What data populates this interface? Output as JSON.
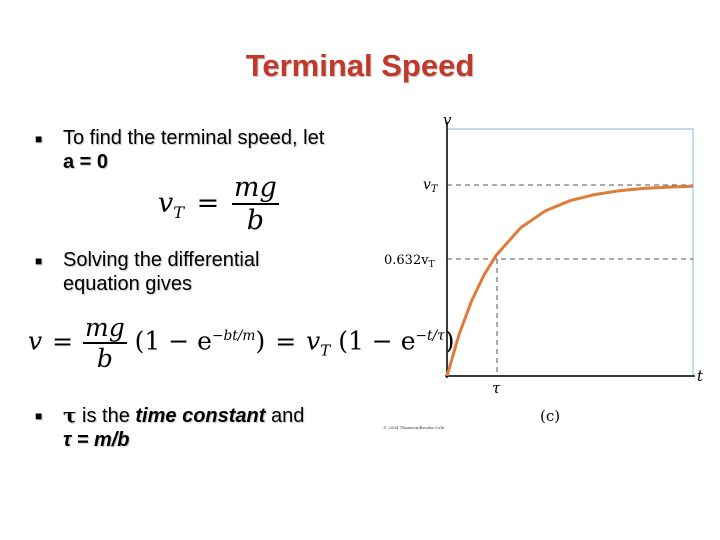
{
  "slide": {
    "title": "Terminal Speed",
    "bullets": [
      {
        "line1": "To find the terminal speed, let",
        "line2": "a = 0"
      },
      {
        "line1": "Solving the differential",
        "line2": "equation gives"
      },
      {
        "tau": "τ",
        "mid": " is the ",
        "emph": "time constant",
        "tail": " and",
        "line2": "τ = m/b"
      }
    ],
    "equations": {
      "eq1": {
        "lhs_v": "v",
        "lhs_sub": "T",
        "equals": "=",
        "num": "mg",
        "den": "b"
      },
      "eq2": {
        "v": "v",
        "equals1": "=",
        "num": "mg",
        "den": "b",
        "one1": "(1 − e",
        "exp1": "−bt/m",
        "close1": ")",
        "equals2": "=",
        "vT": "v",
        "vT_sub": "T",
        "one2": "(1 − e",
        "exp2": "−t/τ",
        "close2": ")"
      }
    }
  },
  "graph": {
    "y_axis_label": "v",
    "x_axis_label": "t",
    "vt_label": "v",
    "vt_sub": "T",
    "frac_label": "0.632v",
    "frac_sub": "T",
    "tau_label": "τ",
    "panel_label": "(c)",
    "copyright": "© 2004 Thomson/Brooks Cole",
    "colors": {
      "curve": "#e07b39",
      "box": "#a9d0ef",
      "axis": "#000000",
      "dash": "#555555"
    },
    "chart_data": {
      "type": "line",
      "function": "v = vT(1 − e^(−t/τ))",
      "x_units": "t/τ",
      "y_units": "v/vT",
      "x": [
        0,
        0.25,
        0.5,
        0.75,
        1,
        1.5,
        2,
        2.5,
        3,
        3.5,
        4,
        4.5,
        5
      ],
      "y": [
        0,
        0.221,
        0.393,
        0.528,
        0.632,
        0.777,
        0.865,
        0.918,
        0.95,
        0.97,
        0.982,
        0.989,
        0.993
      ],
      "xlim": [
        0,
        5
      ],
      "ylim": [
        0,
        1.3
      ]
    }
  }
}
